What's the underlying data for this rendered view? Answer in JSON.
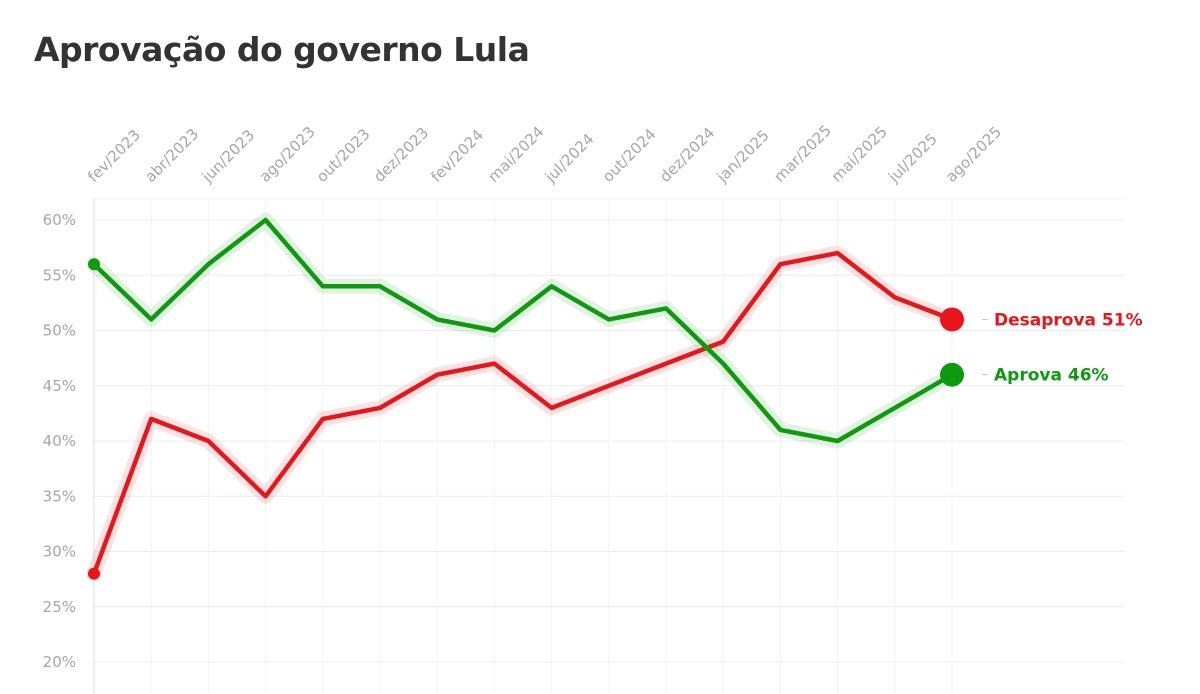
{
  "chart_data": {
    "type": "line",
    "title": "Aprovação do governo Lula",
    "x": [
      "fev/2023",
      "abr/2023",
      "jun/2023",
      "ago/2023",
      "out/2023",
      "dez/2023",
      "fev/2024",
      "mai/2024",
      "jul/2024",
      "out/2024",
      "dez/2024",
      "jan/2025",
      "mar/2025",
      "mai/2025",
      "jul/2025",
      "ago/2025"
    ],
    "ylim": [
      20,
      60
    ],
    "yticks": [
      20,
      25,
      30,
      35,
      40,
      45,
      50,
      55,
      60
    ],
    "ytick_suffix": "%",
    "grid": true,
    "series": [
      {
        "name": "Desaprova",
        "color": "#e8161b",
        "values": [
          28,
          42,
          40,
          35,
          42,
          43,
          46,
          47,
          43,
          45,
          47,
          49,
          56,
          57,
          53,
          51
        ],
        "end_label": "Desaprova 51%"
      },
      {
        "name": "Aprova",
        "color": "#0e9a0e",
        "values": [
          56,
          51,
          56,
          60,
          54,
          54,
          51,
          50,
          54,
          51,
          52,
          47,
          41,
          40,
          43,
          46
        ],
        "end_label": "Aprova 46%"
      }
    ]
  }
}
